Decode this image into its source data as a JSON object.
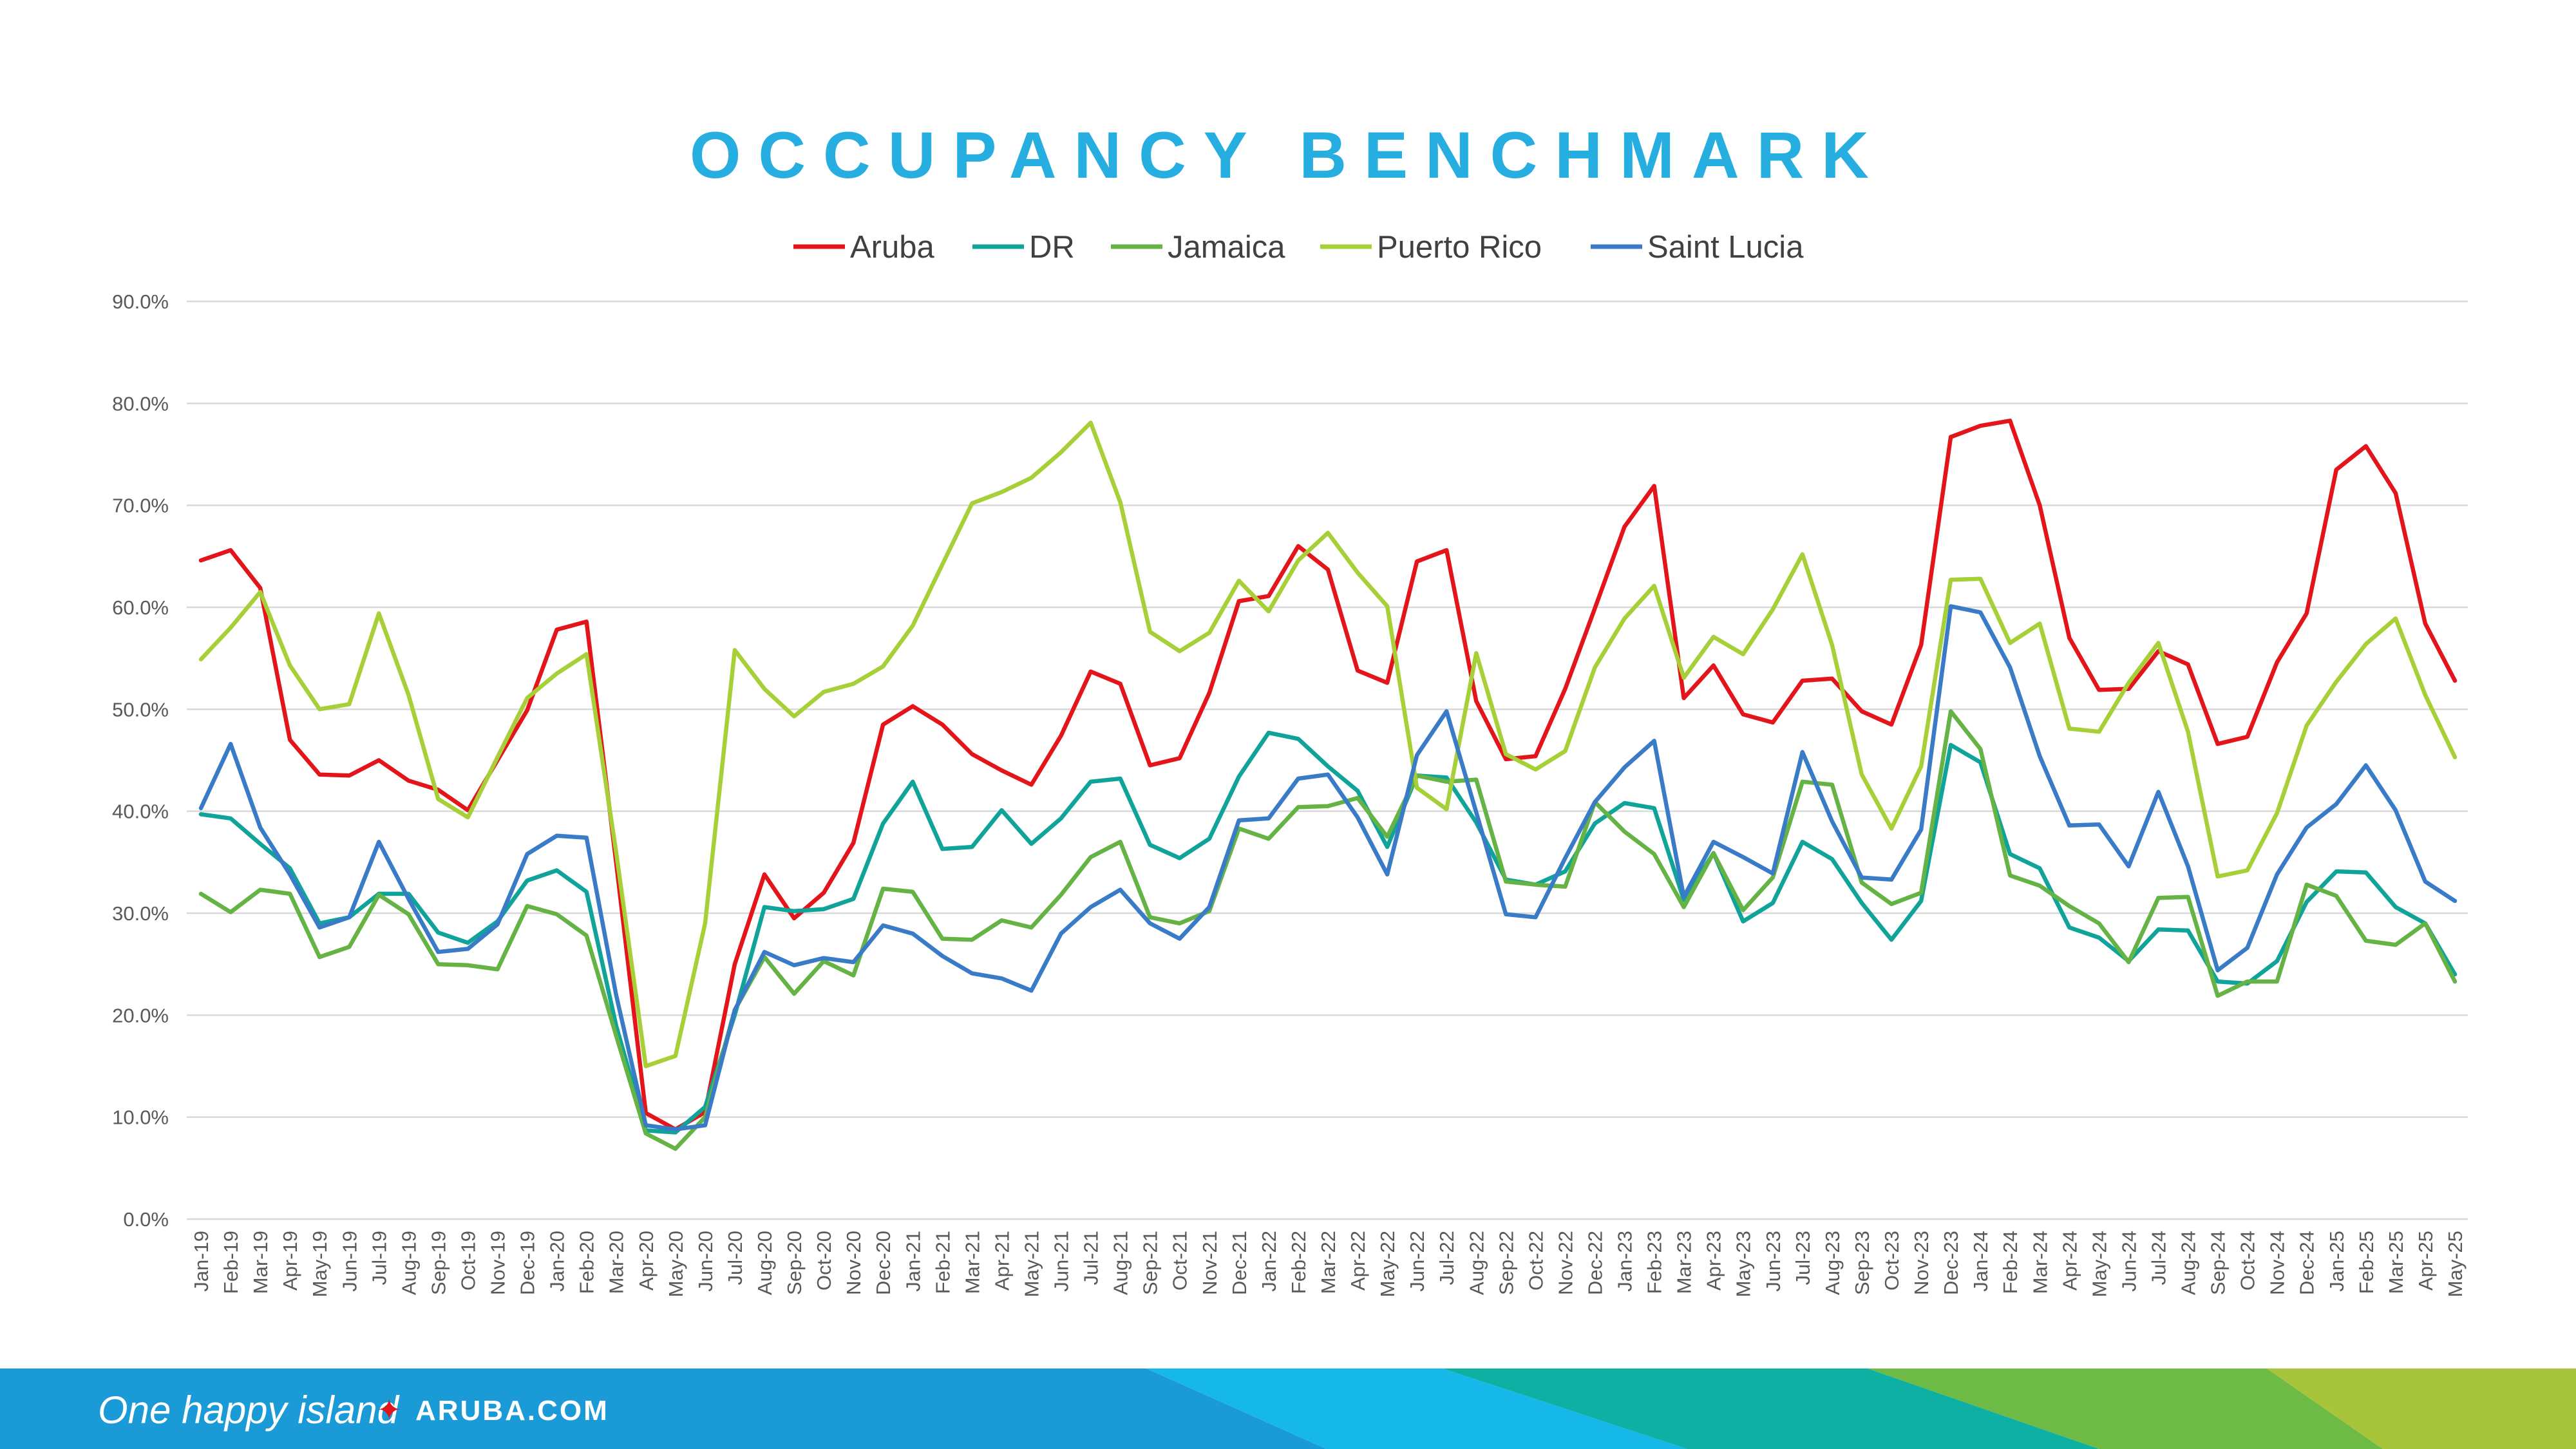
{
  "page": {
    "background": "#ffffff"
  },
  "chart_data": {
    "type": "line",
    "title": "OCCUPANCY BENCHMARK",
    "title_color": "#27aee0",
    "ylim": [
      0,
      90
    ],
    "yticks": [
      0,
      10,
      20,
      30,
      40,
      50,
      60,
      70,
      80,
      90
    ],
    "ytick_labels": [
      "0.0%",
      "10.0%",
      "20.0%",
      "30.0%",
      "40.0%",
      "50.0%",
      "60.0%",
      "70.0%",
      "80.0%",
      "90.0%"
    ],
    "grid": true,
    "legend_position": "top",
    "x": [
      "Jan-19",
      "Feb-19",
      "Mar-19",
      "Apr-19",
      "May-19",
      "Jun-19",
      "Jul-19",
      "Aug-19",
      "Sep-19",
      "Oct-19",
      "Nov-19",
      "Dec-19",
      "Jan-20",
      "Feb-20",
      "Mar-20",
      "Apr-20",
      "May-20",
      "Jun-20",
      "Jul-20",
      "Aug-20",
      "Sep-20",
      "Oct-20",
      "Nov-20",
      "Dec-20",
      "Jan-21",
      "Feb-21",
      "Mar-21",
      "Apr-21",
      "May-21",
      "Jun-21",
      "Jul-21",
      "Aug-21",
      "Sep-21",
      "Oct-21",
      "Nov-21",
      "Dec-21",
      "Jan-22",
      "Feb-22",
      "Mar-22",
      "Apr-22",
      "May-22",
      "Jun-22",
      "Jul-22",
      "Aug-22",
      "Sep-22",
      "Oct-22",
      "Nov-22",
      "Dec-22",
      "Jan-23",
      "Feb-23",
      "Mar-23",
      "Apr-23",
      "May-23",
      "Jun-23",
      "Jul-23",
      "Aug-23",
      "Sep-23",
      "Oct-23",
      "Nov-23",
      "Dec-23",
      "Jan-24",
      "Feb-24",
      "Mar-24",
      "Apr-24",
      "May-24",
      "Jun-24",
      "Jul-24",
      "Aug-24",
      "Sep-24",
      "Oct-24",
      "Nov-24",
      "Dec-24",
      "Jan-25",
      "Feb-25",
      "Mar-25",
      "Apr-25",
      "May-25"
    ],
    "series": [
      {
        "name": "Aruba",
        "color": "#e3151b",
        "values": [
          64.6,
          65.6,
          61.9,
          47.0,
          43.6,
          43.5,
          45.0,
          43.0,
          42.1,
          40.1,
          45.0,
          49.9,
          57.8,
          58.6,
          35.0,
          10.4,
          8.8,
          10.5,
          25.0,
          33.8,
          29.5,
          32.0,
          36.9,
          48.5,
          50.3,
          48.5,
          45.6,
          44.0,
          42.6,
          47.4,
          53.7,
          52.5,
          44.5,
          45.2,
          51.6,
          60.6,
          61.1,
          66.0,
          63.7,
          53.8,
          52.6,
          64.5,
          65.6,
          50.8,
          45.1,
          45.4,
          52.0,
          59.9,
          67.9,
          71.9,
          51.1,
          54.3,
          49.5,
          48.7,
          52.8,
          53.0,
          49.8,
          48.5,
          56.3,
          76.7,
          77.8,
          78.3,
          70.0,
          57.0,
          51.9,
          52.0,
          55.7,
          54.4,
          46.6,
          47.3,
          54.6,
          59.4,
          73.5,
          75.8,
          71.2,
          58.4,
          52.8
        ]
      },
      {
        "name": "DR",
        "color": "#0fa39a",
        "values": [
          39.7,
          39.3,
          36.8,
          34.4,
          29.0,
          29.6,
          31.9,
          31.9,
          28.1,
          27.1,
          29.2,
          33.2,
          34.2,
          32.1,
          19.0,
          8.7,
          8.5,
          11.0,
          20.0,
          30.6,
          30.2,
          30.4,
          31.4,
          38.8,
          42.9,
          36.3,
          36.5,
          40.1,
          36.8,
          39.3,
          42.9,
          43.2,
          36.7,
          35.4,
          37.3,
          43.4,
          47.7,
          47.1,
          44.4,
          42.0,
          36.5,
          43.5,
          43.3,
          38.9,
          33.3,
          32.8,
          34.1,
          38.8,
          40.8,
          40.3,
          31.3,
          35.9,
          29.2,
          31.0,
          37.0,
          35.3,
          31.0,
          27.4,
          31.2,
          46.5,
          44.8,
          35.8,
          34.4,
          28.6,
          27.6,
          25.3,
          28.4,
          28.3,
          23.3,
          23.1,
          25.3,
          31.1,
          34.1,
          34.0,
          30.6,
          29.0,
          24.0
        ]
      },
      {
        "name": "Jamaica",
        "color": "#65b245",
        "values": [
          31.9,
          30.1,
          32.3,
          31.9,
          25.7,
          26.7,
          31.8,
          29.9,
          25.0,
          24.9,
          24.5,
          30.7,
          29.9,
          27.8,
          18.0,
          8.4,
          6.9,
          10.0,
          20.5,
          25.7,
          22.1,
          25.3,
          23.9,
          32.4,
          32.1,
          27.5,
          27.4,
          29.3,
          28.6,
          31.8,
          35.5,
          37.0,
          29.6,
          29.0,
          30.2,
          38.3,
          37.3,
          40.4,
          40.5,
          41.3,
          37.5,
          43.5,
          42.9,
          43.1,
          33.1,
          32.8,
          32.6,
          40.9,
          38.0,
          35.8,
          30.6,
          35.9,
          30.3,
          33.5,
          42.9,
          42.6,
          33.0,
          30.9,
          32.0,
          49.8,
          46.1,
          33.7,
          32.7,
          30.7,
          29.0,
          25.2,
          31.5,
          31.6,
          21.9,
          23.3,
          23.3,
          32.8,
          31.7,
          27.3,
          26.9,
          29.0,
          23.3
        ]
      },
      {
        "name": "Puerto Rico",
        "color": "#a7cf37",
        "values": [
          54.9,
          58.0,
          61.5,
          54.3,
          50.0,
          50.5,
          59.4,
          51.4,
          41.2,
          39.4,
          45.3,
          51.1,
          53.5,
          55.4,
          36.0,
          15.0,
          16.0,
          29.0,
          55.8,
          52.0,
          49.3,
          51.7,
          52.5,
          54.2,
          58.2,
          64.2,
          70.2,
          71.3,
          72.7,
          75.2,
          78.1,
          70.3,
          57.6,
          55.7,
          57.5,
          62.6,
          59.6,
          64.6,
          67.3,
          63.4,
          60.1,
          42.3,
          40.2,
          55.5,
          45.6,
          44.1,
          45.9,
          54.1,
          58.9,
          62.1,
          53.1,
          57.1,
          55.4,
          59.8,
          65.2,
          56.3,
          43.6,
          38.3,
          44.4,
          62.7,
          62.8,
          56.5,
          58.4,
          48.1,
          47.8,
          52.6,
          56.5,
          47.8,
          33.6,
          34.2,
          39.8,
          48.4,
          52.7,
          56.4,
          58.9,
          51.4,
          45.3
        ]
      },
      {
        "name": "Saint Lucia",
        "color": "#3a7bc8",
        "values": [
          40.3,
          46.6,
          38.4,
          33.8,
          28.6,
          29.6,
          37.0,
          31.4,
          26.2,
          26.5,
          28.9,
          35.8,
          37.6,
          37.4,
          22.0,
          9.2,
          8.8,
          9.2,
          20.5,
          26.2,
          24.9,
          25.6,
          25.2,
          28.8,
          28.0,
          25.8,
          24.1,
          23.6,
          22.4,
          28.0,
          30.6,
          32.3,
          29.0,
          27.5,
          30.6,
          39.1,
          39.3,
          43.2,
          43.6,
          39.4,
          33.8,
          45.5,
          49.8,
          39.9,
          29.9,
          29.6,
          35.4,
          40.9,
          44.3,
          46.9,
          31.6,
          37.0,
          35.5,
          33.9,
          45.8,
          39.0,
          33.5,
          33.3,
          38.2,
          60.1,
          59.5,
          54.1,
          45.4,
          38.6,
          38.7,
          34.6,
          41.9,
          34.6,
          24.4,
          26.6,
          33.8,
          38.4,
          40.7,
          44.5,
          40.1,
          33.1,
          31.2
        ]
      }
    ]
  },
  "footer": {
    "tagline": "One happy island",
    "star_symbol": "✦",
    "site": "ARUBA.COM",
    "colors": [
      "#1a9bd7",
      "#15b8e9",
      "#0fb0a4",
      "#6dbb45",
      "#a8c43a"
    ]
  }
}
